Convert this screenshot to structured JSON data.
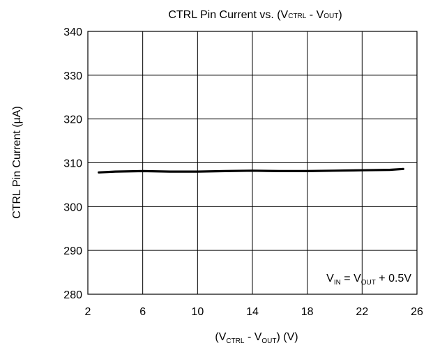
{
  "chart_data": {
    "type": "line",
    "title": {
      "main": "CTRL Pin Current vs. (V",
      "sub1": "CTRL",
      "mid": " - V",
      "sub2": "OUT",
      "end": ")"
    },
    "xlabel": {
      "pre": "(V",
      "sub1": "CTRL",
      "mid": " - V",
      "sub2": "OUT",
      "end": ") (V)"
    },
    "ylabel": "CTRL Pin Current (µA)",
    "xlim": [
      2,
      26
    ],
    "ylim": [
      280,
      340
    ],
    "x_ticks": [
      2,
      6,
      10,
      14,
      18,
      22,
      26
    ],
    "y_ticks": [
      280,
      290,
      300,
      310,
      320,
      330,
      340
    ],
    "grid": true,
    "annotation": {
      "pre": "V",
      "sub1": "IN",
      "mid": " = V",
      "sub2": "OUT",
      "end": " + 0.5V"
    },
    "series": [
      {
        "x": [
          2.8,
          4,
          6,
          8,
          10,
          12,
          14,
          16,
          18,
          20,
          22,
          24,
          25
        ],
        "y": [
          307.8,
          308.0,
          308.1,
          308.0,
          308.0,
          308.1,
          308.2,
          308.1,
          308.1,
          308.2,
          308.3,
          308.4,
          308.6
        ],
        "color": "#000000"
      }
    ]
  }
}
